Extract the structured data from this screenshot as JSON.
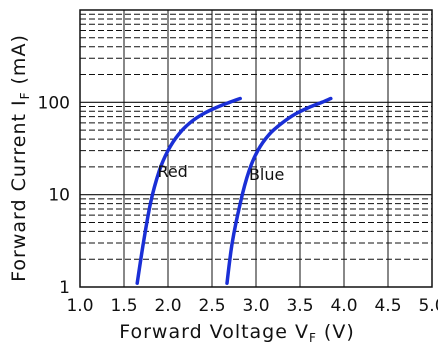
{
  "chart_data": {
    "type": "line",
    "title": "",
    "xlabel": "Forward Voltage V_F (V)",
    "ylabel": "Forward Current I_F (mA)",
    "xlim": [
      1.0,
      5.0
    ],
    "ylim": [
      1,
      1000
    ],
    "yscale": "log",
    "grid": true,
    "x_ticks": [
      "1.0",
      "1.5",
      "2.0",
      "2.5",
      "3.0",
      "3.5",
      "4.0",
      "4.5",
      "5.0"
    ],
    "y_ticks": [
      "1",
      "10",
      "100"
    ],
    "series": [
      {
        "name": "Red",
        "color": "#1a2fd6",
        "x": [
          1.65,
          1.72,
          1.8,
          1.9,
          2.0,
          2.12,
          2.25,
          2.4,
          2.55,
          2.7,
          2.82
        ],
        "y": [
          1.1,
          3.0,
          8.0,
          18,
          30,
          45,
          60,
          75,
          88,
          100,
          110
        ]
      },
      {
        "name": "Blue",
        "color": "#1a2fd6",
        "x": [
          2.67,
          2.73,
          2.82,
          2.92,
          3.02,
          3.15,
          3.3,
          3.45,
          3.6,
          3.75,
          3.85
        ],
        "y": [
          1.1,
          3.0,
          8.0,
          18,
          30,
          45,
          60,
          75,
          88,
          100,
          110
        ]
      }
    ]
  },
  "labels": {
    "xlabel_main": "Forward  Voltage  V",
    "xlabel_sub": "F",
    "xlabel_unit": " (V)",
    "ylabel_main": "Forward  Current  I",
    "ylabel_sub": "F",
    "ylabel_unit": " (mA)"
  }
}
